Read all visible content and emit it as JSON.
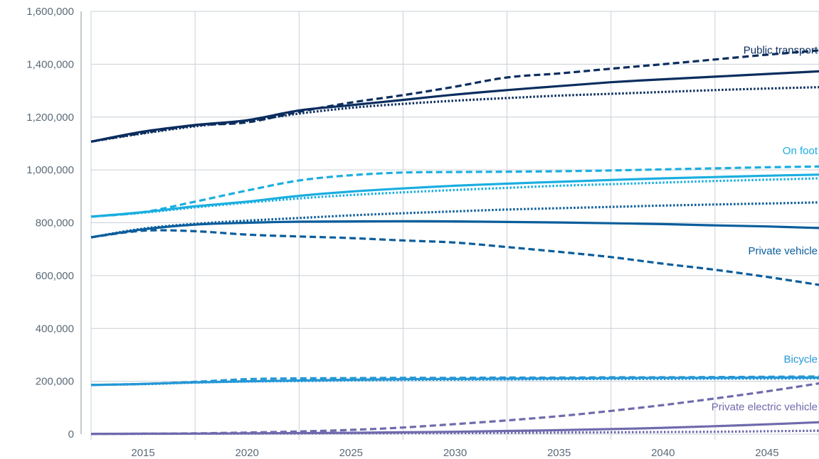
{
  "chart_data": {
    "type": "line",
    "title": "",
    "xlabel": "",
    "ylabel": "",
    "xlim": [
      2012.5,
      2047.5
    ],
    "ylim": [
      0,
      1600000
    ],
    "x_ticks": [
      2015,
      2020,
      2025,
      2030,
      2035,
      2040,
      2045
    ],
    "x_tick_labels": [
      "2015",
      "2020",
      "2025",
      "2030",
      "2035",
      "2040",
      "2045"
    ],
    "y_ticks": [
      0,
      200000,
      400000,
      600000,
      800000,
      1000000,
      1200000,
      1400000,
      1600000
    ],
    "y_tick_labels": [
      "0",
      "200,000",
      "400,000",
      "600,000",
      "800,000",
      "1,000,000",
      "1,200,000",
      "1,400,000",
      "1,600,000"
    ],
    "grid": true,
    "x": [
      2012.5,
      2015,
      2017.5,
      2020,
      2022.5,
      2025,
      2027.5,
      2030,
      2032.5,
      2035,
      2037.5,
      2040,
      2042.5,
      2045,
      2047.5
    ],
    "series": [
      {
        "name": "Public transport",
        "style": "solid",
        "color": "#0b2d5e",
        "values": [
          1107000,
          1145000,
          1170000,
          1188000,
          1225000,
          1245000,
          1265000,
          1285000,
          1302000,
          1317000,
          1332000,
          1343000,
          1353000,
          1363000,
          1373000
        ]
      },
      {
        "name": "Public transport",
        "style": "dashed",
        "color": "#0b2d5e",
        "values": [
          1107000,
          1140000,
          1168000,
          1180000,
          1220000,
          1255000,
          1283000,
          1315000,
          1350000,
          1365000,
          1383000,
          1400000,
          1418000,
          1436000,
          1452000
        ]
      },
      {
        "name": "Public transport",
        "style": "dotted",
        "color": "#0b2d5e",
        "values": [
          1107000,
          1138000,
          1165000,
          1185000,
          1213000,
          1235000,
          1250000,
          1262000,
          1272000,
          1281000,
          1288000,
          1295000,
          1302000,
          1308000,
          1313000
        ]
      },
      {
        "name": "On foot",
        "style": "solid",
        "color": "#1aaee0",
        "values": [
          823000,
          840000,
          862000,
          880000,
          902000,
          918000,
          930000,
          940000,
          948000,
          955000,
          962000,
          968000,
          973000,
          978000,
          982000
        ]
      },
      {
        "name": "On foot",
        "style": "dashed",
        "color": "#1aaee0",
        "values": [
          823000,
          840000,
          880000,
          922000,
          960000,
          980000,
          990000,
          992000,
          993000,
          995000,
          998000,
          1002000,
          1006000,
          1010000,
          1013000
        ]
      },
      {
        "name": "On foot",
        "style": "dotted",
        "color": "#1aaee0",
        "values": [
          823000,
          838000,
          858000,
          876000,
          892000,
          905000,
          915000,
          924000,
          932000,
          940000,
          946000,
          952000,
          958000,
          963000,
          968000
        ]
      },
      {
        "name": "Private vehicle",
        "style": "solid",
        "color": "#0a5d9c",
        "values": [
          745000,
          775000,
          793000,
          800000,
          804000,
          805000,
          806000,
          805000,
          803000,
          801000,
          798000,
          795000,
          790000,
          786000,
          780000
        ]
      },
      {
        "name": "Private vehicle",
        "style": "dashed",
        "color": "#0a5d9c",
        "values": [
          745000,
          770000,
          768000,
          755000,
          748000,
          742000,
          733000,
          725000,
          708000,
          690000,
          670000,
          645000,
          622000,
          595000,
          565000
        ]
      },
      {
        "name": "Private vehicle",
        "style": "dotted",
        "color": "#0a5d9c",
        "values": [
          745000,
          778000,
          796000,
          808000,
          818000,
          828000,
          836000,
          843000,
          850000,
          855000,
          860000,
          865000,
          869000,
          873000,
          877000
        ]
      },
      {
        "name": "Bicycle",
        "style": "solid",
        "color": "#2497d6",
        "values": [
          186000,
          190000,
          196000,
          200000,
          203000,
          206000,
          208000,
          209000,
          210000,
          211000,
          212000,
          213000,
          213000,
          214000,
          214000
        ]
      },
      {
        "name": "Bicycle",
        "style": "dashed",
        "color": "#2497d6",
        "values": [
          186000,
          190000,
          198000,
          208000,
          211000,
          212000,
          213000,
          213000,
          214000,
          214000,
          215000,
          215000,
          216000,
          217000,
          218000
        ]
      },
      {
        "name": "Bicycle",
        "style": "dotted",
        "color": "#2497d6",
        "values": [
          186000,
          189000,
          195000,
          199000,
          201000,
          203000,
          205000,
          206000,
          207000,
          208000,
          209000,
          209000,
          210000,
          210000,
          211000
        ]
      },
      {
        "name": "Private electric vehicle",
        "style": "solid",
        "color": "#6f6aad",
        "values": [
          1000,
          1500,
          2000,
          3000,
          4000,
          5000,
          7000,
          9000,
          12000,
          15000,
          19000,
          24000,
          30000,
          37000,
          45000
        ]
      },
      {
        "name": "Private electric vehicle",
        "style": "dashed",
        "color": "#6f6aad",
        "values": [
          1000,
          1500,
          3000,
          6000,
          10000,
          16000,
          25000,
          38000,
          52000,
          68000,
          88000,
          110000,
          135000,
          162000,
          192000
        ]
      },
      {
        "name": "Private electric vehicle",
        "style": "dotted",
        "color": "#6f6aad",
        "values": [
          1000,
          1200,
          1500,
          2000,
          2500,
          3000,
          3500,
          4000,
          5000,
          6000,
          7000,
          8000,
          9000,
          11000,
          13000
        ]
      }
    ],
    "annotations": [
      {
        "text": "Public transport",
        "color": "#0b2d5e",
        "x": 2047.5,
        "y": 1440000
      },
      {
        "text": "On foot",
        "color": "#1aaee0",
        "x": 2047.5,
        "y": 1060000
      },
      {
        "text": "Private vehicle",
        "color": "#0a5d9c",
        "x": 2047.5,
        "y": 680000
      },
      {
        "text": "Bicycle",
        "color": "#2497d6",
        "x": 2047.5,
        "y": 270000
      },
      {
        "text": "Private electric vehicle",
        "color": "#6f6aad",
        "x": 2047.5,
        "y": 90000
      }
    ],
    "colors": {
      "grid": "#c9d0d6",
      "axis": "#8a959f",
      "tick_text": "#5b6a78"
    }
  }
}
